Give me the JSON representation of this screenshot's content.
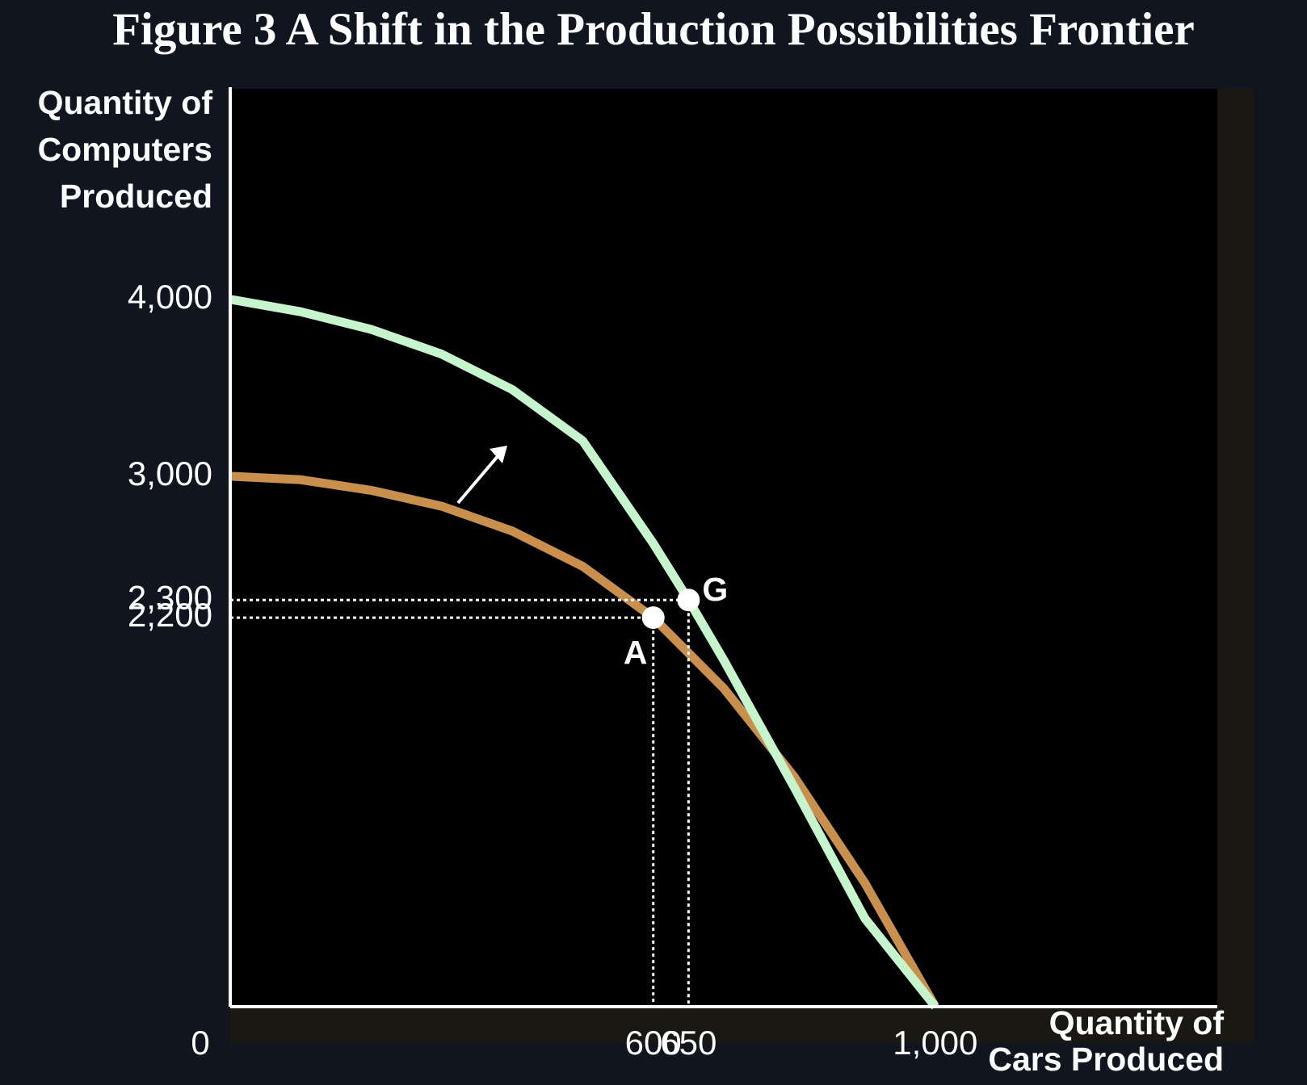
{
  "chart_data": {
    "type": "line",
    "title": "Figure 3 A Shift in the Production Possibilities Frontier",
    "y_label": [
      "Quantity of",
      "Computers",
      "Produced"
    ],
    "x_label": [
      "Quantity of",
      "Cars Produced"
    ],
    "xlim": [
      0,
      1400
    ],
    "ylim": [
      0,
      5200
    ],
    "xticks": [
      0,
      600,
      650,
      {
        "value": 1000,
        "label": "1,000"
      }
    ],
    "yticks": [
      {
        "value": 2200,
        "label": "2,200"
      },
      {
        "value": 2300,
        "label": "2,300"
      },
      {
        "value": 3000,
        "label": "3,000"
      },
      {
        "value": 4000,
        "label": "4,000"
      }
    ],
    "series": [
      {
        "color": "#c98f4c",
        "x": [
          0,
          100,
          200,
          300,
          400,
          500,
          600,
          700,
          800,
          900,
          1000
        ],
        "values": [
          3000,
          2980,
          2920,
          2830,
          2690,
          2490,
          2200,
          1800,
          1300,
          700,
          0
        ]
      },
      {
        "color": "#c6f5cd",
        "x": [
          0,
          100,
          200,
          300,
          400,
          500,
          600,
          650,
          700,
          800,
          900,
          1000
        ],
        "values": [
          4000,
          3930,
          3830,
          3690,
          3490,
          3200,
          2620,
          2300,
          1960,
          1240,
          500,
          0
        ]
      }
    ],
    "points": {
      "x": [
        600,
        650
      ],
      "values": [
        2200,
        2300
      ],
      "labels": [
        "A",
        "G"
      ],
      "color": "#ffffff"
    }
  }
}
